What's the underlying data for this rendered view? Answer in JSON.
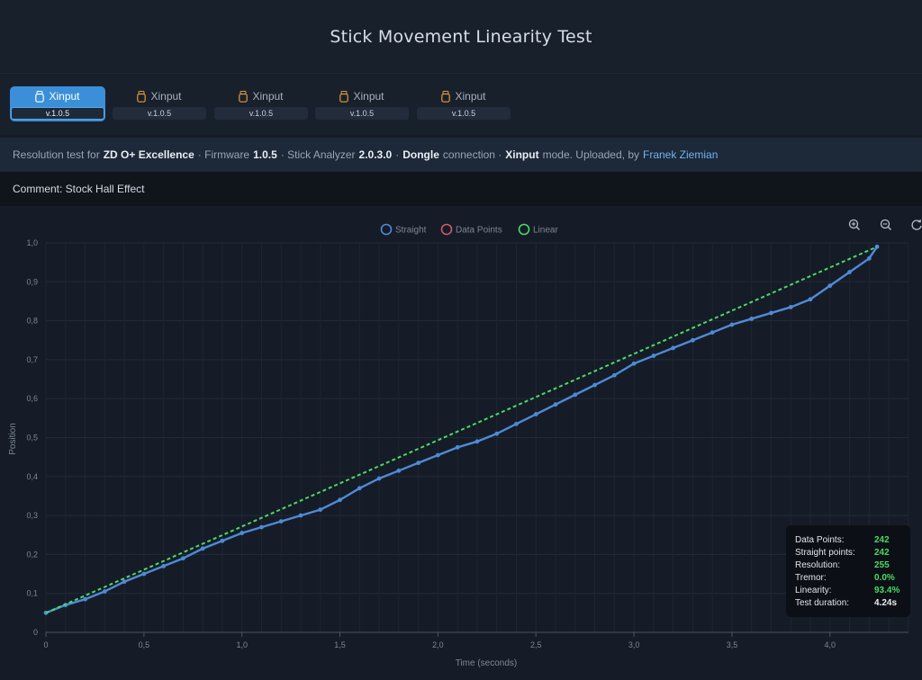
{
  "header": {
    "title": "Stick Movement Linearity Test"
  },
  "tabs": [
    {
      "label": "Xinput",
      "version": "v.1.0.5",
      "active": true
    },
    {
      "label": "Xinput",
      "version": "v.1.0.5",
      "active": false
    },
    {
      "label": "Xinput",
      "version": "v.1.0.5",
      "active": false
    },
    {
      "label": "Xinput",
      "version": "v.1.0.5",
      "active": false
    },
    {
      "label": "Xinput",
      "version": "v.1.0.5",
      "active": false
    }
  ],
  "info": {
    "prefix": "Resolution test for",
    "device": "ZD O+ Excellence",
    "firmware_label": "· Firmware",
    "firmware": "1.0.5",
    "analyzer_label": "· Stick Analyzer",
    "analyzer": "2.0.3.0",
    "sep": "·",
    "connection": "Dongle",
    "connection_label": "connection ·",
    "mode": "Xinput",
    "mode_label": "mode. Uploaded, by",
    "author": "Franek Ziemian"
  },
  "comment": "Comment: Stock Hall Effect",
  "toolbar": {
    "zoom_in_icon": "zoom-in-icon",
    "zoom_out_icon": "zoom-out-icon",
    "reset_icon": "reset-icon"
  },
  "colors": {
    "accent": "#3a8fd8",
    "straight": "#4f8ad6",
    "data_points": "#d05a6a",
    "linear": "#4cd964",
    "stat_value": "#4cd964"
  },
  "stats": [
    {
      "label": "Data Points:",
      "value": "242"
    },
    {
      "label": "Straight points:",
      "value": "242"
    },
    {
      "label": "Resolution:",
      "value": "255"
    },
    {
      "label": "Tremor:",
      "value": "0.0%"
    },
    {
      "label": "Linearity:",
      "value": "93.4%"
    },
    {
      "label": "Test duration:",
      "value": "4.24s"
    }
  ],
  "chart_data": {
    "type": "line",
    "xlabel": "Time (seconds)",
    "ylabel": "Position",
    "xlim": [
      0,
      4.4
    ],
    "ylim": [
      0,
      1.0
    ],
    "xticks": [
      "0",
      "0,5",
      "1,0",
      "1,5",
      "2,0",
      "2,5",
      "3,0",
      "3,5",
      "4,0"
    ],
    "yticks": [
      "0",
      "0,1",
      "0,2",
      "0,3",
      "0,4",
      "0,5",
      "0,6",
      "0,7",
      "0,8",
      "0,9",
      "1,0"
    ],
    "legend": [
      "Straight",
      "Data Points",
      "Linear"
    ],
    "legend_position": "top-center",
    "grid": true,
    "series": [
      {
        "name": "Straight",
        "x": [
          0,
          0.1,
          0.2,
          0.3,
          0.4,
          0.5,
          0.6,
          0.7,
          0.8,
          0.9,
          1.0,
          1.1,
          1.2,
          1.3,
          1.4,
          1.5,
          1.6,
          1.7,
          1.8,
          1.9,
          2.0,
          2.1,
          2.2,
          2.3,
          2.4,
          2.5,
          2.6,
          2.7,
          2.8,
          2.9,
          3.0,
          3.1,
          3.2,
          3.3,
          3.4,
          3.5,
          3.6,
          3.7,
          3.8,
          3.9,
          4.0,
          4.1,
          4.2,
          4.24
        ],
        "y": [
          0.05,
          0.07,
          0.085,
          0.105,
          0.13,
          0.15,
          0.17,
          0.19,
          0.215,
          0.235,
          0.255,
          0.27,
          0.285,
          0.3,
          0.315,
          0.34,
          0.37,
          0.395,
          0.415,
          0.435,
          0.455,
          0.475,
          0.49,
          0.51,
          0.535,
          0.56,
          0.585,
          0.61,
          0.635,
          0.66,
          0.69,
          0.71,
          0.73,
          0.75,
          0.77,
          0.79,
          0.805,
          0.82,
          0.835,
          0.855,
          0.89,
          0.925,
          0.96,
          0.99
        ]
      },
      {
        "name": "Linear",
        "x": [
          0,
          4.24
        ],
        "y": [
          0.05,
          0.99
        ]
      }
    ]
  }
}
